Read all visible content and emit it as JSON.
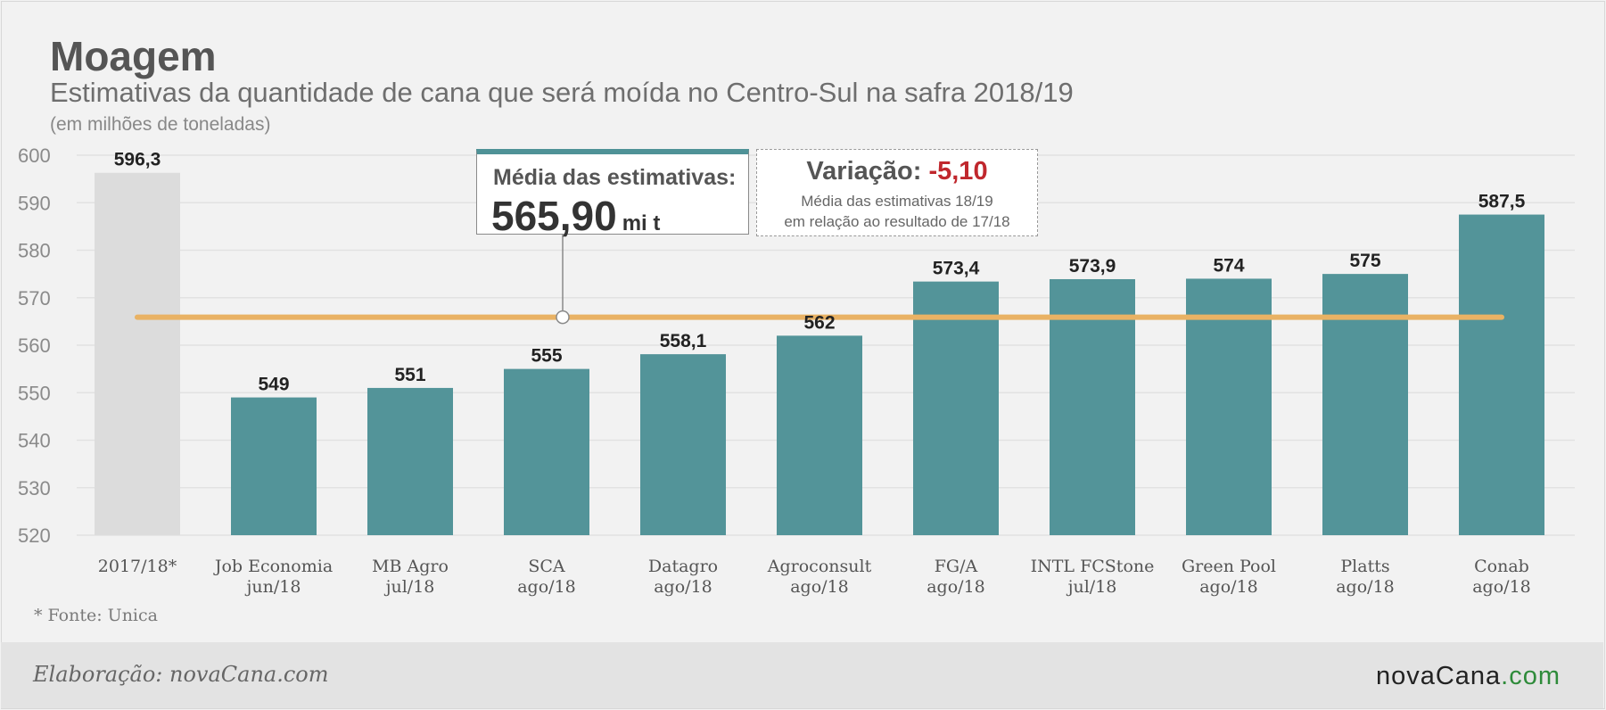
{
  "header": {
    "title": "Moagem",
    "subtitle": "Estimativas da quantidade de cana que será moída no Centro-Sul na safra 2018/19",
    "unit_note": "(em milhões de toneladas)"
  },
  "average_box": {
    "label": "Média das estimativas:",
    "value": "565,90",
    "unit": "mi t"
  },
  "variation_box": {
    "label": "Variação:",
    "value": "-5,10",
    "note_line1": "Média das estimativas 18/19",
    "note_line2": "em relação ao resultado de 17/18"
  },
  "footnote": "* Fonte: Unica",
  "footer": {
    "credit": "Elaboração: novaCana.com",
    "brand_part1": "novaCana",
    "brand_part2": ".com"
  },
  "colors": {
    "bar": "#539499",
    "reference_bar": "#dcdcdc",
    "average_line": "#e9b264",
    "negative": "#c0272d",
    "brand_green": "#2e8b3a"
  },
  "chart_data": {
    "type": "bar",
    "title": "Moagem",
    "subtitle": "Estimativas da quantidade de cana que será moída no Centro-Sul na safra 2018/19",
    "ylabel": "(em milhões de toneladas)",
    "ylim": [
      520,
      600
    ],
    "yticks": [
      520,
      530,
      540,
      550,
      560,
      570,
      580,
      590,
      600
    ],
    "grid": true,
    "categories": [
      [
        "2017/18*"
      ],
      [
        "Job Economia",
        "jun/18"
      ],
      [
        "MB Agro",
        "jul/18"
      ],
      [
        "SCA",
        "ago/18"
      ],
      [
        "Datagro",
        "ago/18"
      ],
      [
        "Agroconsult",
        "ago/18"
      ],
      [
        "FG/A",
        "ago/18"
      ],
      [
        "INTL FCStone",
        "jul/18"
      ],
      [
        "Green Pool",
        "ago/18"
      ],
      [
        "Platts",
        "ago/18"
      ],
      [
        "Conab",
        "ago/18"
      ]
    ],
    "values": [
      596.3,
      549,
      551,
      555,
      558.1,
      562,
      573.4,
      573.9,
      574,
      575,
      587.5
    ],
    "value_labels": [
      "596,3",
      "549",
      "551",
      "555",
      "558,1",
      "562",
      "573,4",
      "573,9",
      "574",
      "575",
      "587,5"
    ],
    "reference_index": 0,
    "average_line": 565.9
  }
}
